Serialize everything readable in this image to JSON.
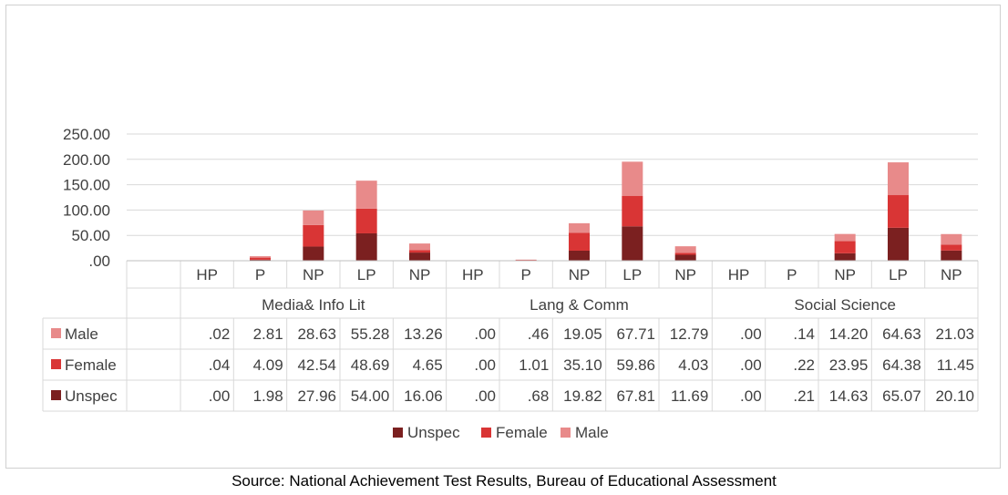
{
  "source_note": "Source: National Achievement Test Results, Bureau of Educational Assessment",
  "chart_data": {
    "type": "bar",
    "stacked": true,
    "groups": [
      "Media& Info Lit",
      "Lang & Comm",
      "Social Science"
    ],
    "categories": [
      "HP",
      "P",
      "NP",
      "LP",
      "NP",
      "HP",
      "P",
      "NP",
      "LP",
      "NP",
      "HP",
      "P",
      "NP",
      "LP",
      "NP"
    ],
    "ylim": [
      0,
      250
    ],
    "yticks": [
      ".00",
      "50.00",
      "100.00",
      "150.00",
      "200.00",
      "250.00"
    ],
    "ytick_values": [
      0,
      50,
      100,
      150,
      200,
      250
    ],
    "grid": true,
    "legend_position": "bottom",
    "series": [
      {
        "name": "Unspec",
        "color": "#7b2020",
        "values": [
          0.0,
          1.98,
          27.96,
          54.0,
          16.06,
          0.0,
          0.68,
          19.82,
          67.81,
          11.69,
          0.0,
          0.21,
          14.63,
          65.07,
          20.1
        ],
        "labels": [
          ".00",
          "1.98",
          "27.96",
          "54.00",
          "16.06",
          ".00",
          ".68",
          "19.82",
          "67.81",
          "11.69",
          ".00",
          ".21",
          "14.63",
          "65.07",
          "20.10"
        ]
      },
      {
        "name": "Female",
        "color": "#d93535",
        "values": [
          0.04,
          4.09,
          42.54,
          48.69,
          4.65,
          0.0,
          1.01,
          35.1,
          59.86,
          4.03,
          0.0,
          0.22,
          23.95,
          64.38,
          11.45
        ],
        "labels": [
          ".04",
          "4.09",
          "42.54",
          "48.69",
          "4.65",
          ".00",
          "1.01",
          "35.10",
          "59.86",
          "4.03",
          ".00",
          ".22",
          "23.95",
          "64.38",
          "11.45"
        ]
      },
      {
        "name": "Male",
        "color": "#e88a8a",
        "values": [
          0.02,
          2.81,
          28.63,
          55.28,
          13.26,
          0.0,
          0.46,
          19.05,
          67.71,
          12.79,
          0.0,
          0.14,
          14.2,
          64.63,
          21.03
        ],
        "labels": [
          ".02",
          "2.81",
          "28.63",
          "55.28",
          "13.26",
          ".00",
          ".46",
          "19.05",
          "67.71",
          "12.79",
          ".00",
          ".14",
          "14.20",
          "64.63",
          "21.03"
        ]
      }
    ],
    "table_row_order": [
      "Male",
      "Female",
      "Unspec"
    ],
    "legend_order": [
      "Unspec",
      "Female",
      "Male"
    ]
  }
}
